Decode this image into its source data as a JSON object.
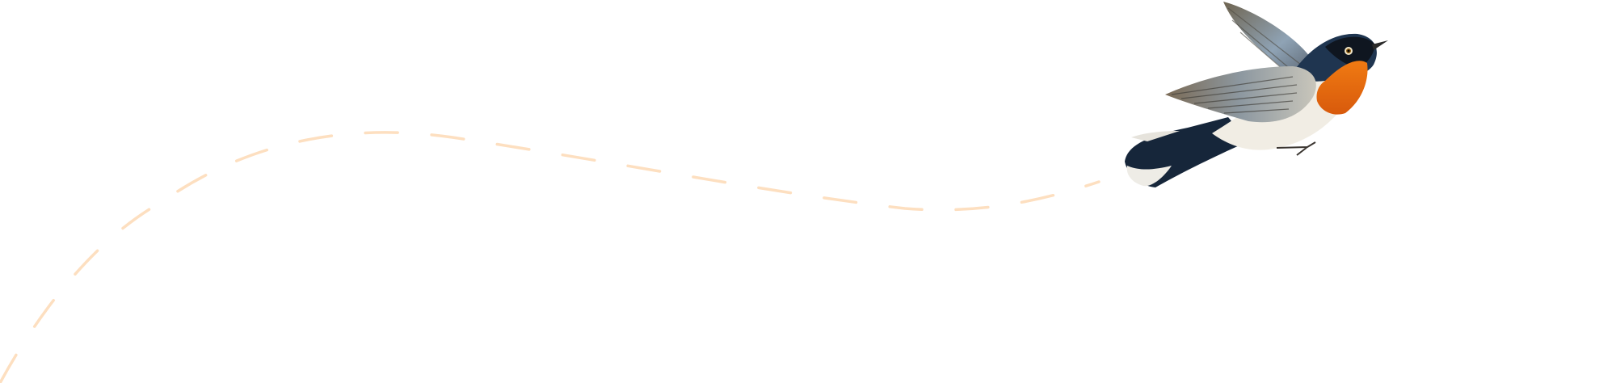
{
  "colors": {
    "background": "#ffffff",
    "flight_path": "#fddfc0",
    "bird_throat": "#e8650f",
    "bird_head": "#1f3550",
    "bird_wing": "#8a8c86",
    "bird_belly": "#f1ede4"
  },
  "icons": {
    "bird": "flying-bird-illustration",
    "path": "dashed-flight-path"
  }
}
